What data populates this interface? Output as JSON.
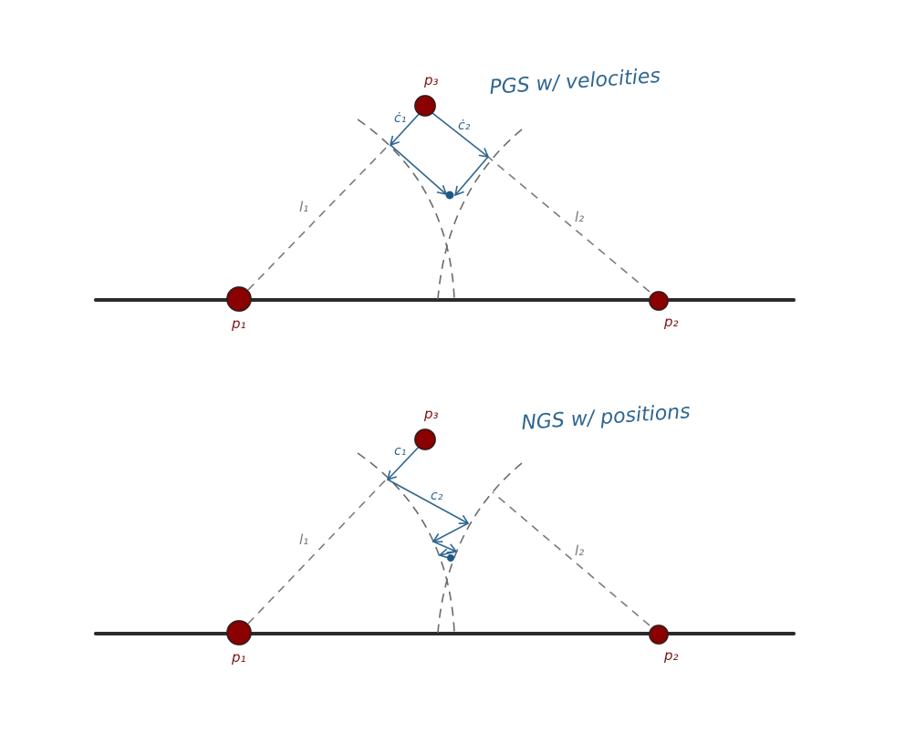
{
  "colors": {
    "ground": "#2b2b2b",
    "particle_fill": "#8b0000",
    "particle_stroke": "#3a1a1a",
    "particle_label": "#7a1414",
    "constraint": "#7a7a7a",
    "correction": "#2f6690"
  },
  "panels": [
    {
      "title": "PGS w/ velocities",
      "labels": {
        "p1": "p₁",
        "p2": "p₂",
        "p3": "p₃",
        "l1": "l₁",
        "l2": "l₂",
        "c1": "ċ₁",
        "c2": "ċ₂"
      }
    },
    {
      "title": "NGS w/ positions",
      "labels": {
        "p1": "p₁",
        "p2": "p₂",
        "p3": "p₃",
        "l1": "l₁",
        "l2": "l₂",
        "c1": "c₁",
        "c2": "c₂"
      }
    }
  ]
}
